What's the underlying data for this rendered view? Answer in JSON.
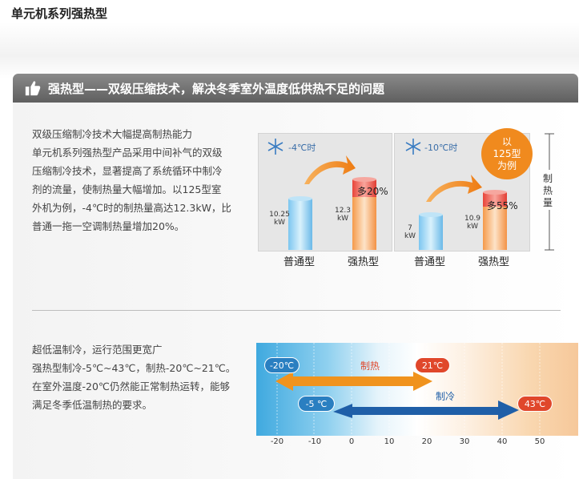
{
  "page": {
    "title": "单元机系列强热型"
  },
  "section": {
    "icon": "thumbs-up-icon",
    "title": "强热型——双级压缩技术，解决冬季室外温度低供热不足的问题"
  },
  "intro": {
    "lines": [
      "双级压缩制冷技术大幅提高制热能力",
      "单元机系列强热型产品采用中间补气的双级",
      "压缩制冷技术，显著提高了系统循环中制冷",
      "剂的流量，使制热量大幅增加。以125型室",
      "外机为例，-4℃时的制热量高达12.3kW，比",
      "普通一拖一空调制热量增加20%。"
    ]
  },
  "capacity_chart": {
    "axis_label": "制热量",
    "badge": {
      "lines": [
        "以",
        "125型",
        "为例"
      ]
    },
    "groups": [
      {
        "temp": "-4℃时",
        "normal_value": "10.25 kW",
        "strong_value": "12.3 kW",
        "increase": "多20%",
        "normal_label": "普通型",
        "strong_label": "强热型"
      },
      {
        "temp": "-10℃时",
        "normal_value": "7 kW",
        "strong_value": "10.9 kW",
        "increase": "多55%",
        "normal_label": "普通型",
        "strong_label": "强热型"
      }
    ]
  },
  "range": {
    "lines": [
      "超低温制冷，运行范围更宽广",
      "强热型制冷-5℃~43℃，制热-20℃~21℃。",
      "在室外温度-20℃仍然能正常制热运转，能够",
      "满足冬季低温制热的要求。"
    ]
  },
  "range_chart": {
    "heating": {
      "label": "制热",
      "min": "-20℃",
      "max": "21℃"
    },
    "cooling": {
      "label": "制冷",
      "min": "-5 ℃",
      "max": "43℃"
    },
    "ticks": [
      "-20",
      "-10",
      "0",
      "10",
      "20",
      "30",
      "40",
      "50"
    ],
    "colors": {
      "heating_arrow": "#f0931e",
      "cooling_arrow": "#1f5fa8"
    }
  }
}
